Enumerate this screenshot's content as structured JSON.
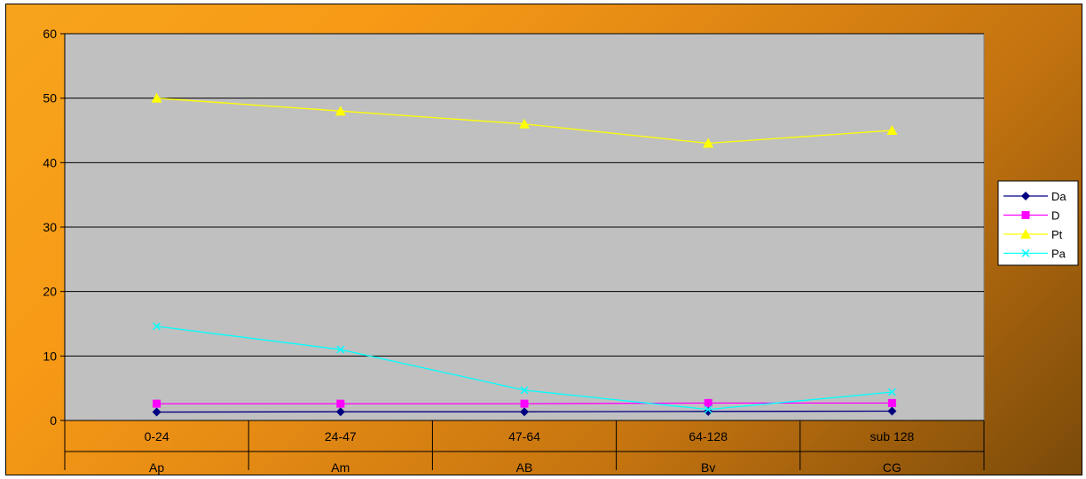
{
  "chart_data": {
    "type": "line",
    "title": "",
    "xlabel": "",
    "ylabel": "",
    "categories": [
      "0-24",
      "24-47",
      "47-64",
      "64-128",
      "sub 128"
    ],
    "category_groups": [
      "Ap",
      "Am",
      "AB",
      "Bv",
      "CG"
    ],
    "ylim": [
      0,
      60
    ],
    "yticks": [
      "0",
      "10",
      "20",
      "30",
      "40",
      "50",
      "60"
    ],
    "grid": true,
    "legend_position": "right",
    "series": [
      {
        "name": "Da",
        "values": [
          1.3,
          1.35,
          1.35,
          1.4,
          1.45
        ],
        "color": "#000080",
        "marker": "diamond"
      },
      {
        "name": "D",
        "values": [
          2.6,
          2.6,
          2.6,
          2.7,
          2.7
        ],
        "color": "#ff00ff",
        "marker": "square"
      },
      {
        "name": "Pt",
        "values": [
          50,
          48,
          46,
          43,
          45
        ],
        "color": "#ffff00",
        "marker": "triangle"
      },
      {
        "name": "Pa",
        "values": [
          14.6,
          11,
          4.7,
          1.7,
          4.4
        ],
        "color": "#00ffff",
        "marker": "x"
      }
    ],
    "colors": {
      "plot_area": "#c0c0c0",
      "grid": "#000000"
    }
  }
}
